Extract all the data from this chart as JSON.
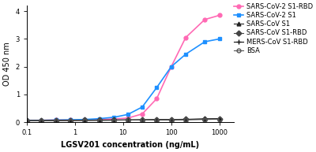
{
  "xlabel": "LGSV201 concentration (ng/mL)",
  "ylabel": "OD 450 nm",
  "xlim": [
    0.1,
    2000
  ],
  "ylim": [
    0,
    4.2
  ],
  "yticks": [
    0,
    1,
    2,
    3,
    4
  ],
  "series": [
    {
      "label": "SARS-CoV-2 S1-RBD",
      "color": "#FF69B4",
      "marker": "o",
      "markersize": 3.5,
      "linewidth": 1.2,
      "x": [
        0.1,
        0.2,
        0.4,
        0.8,
        1.6,
        3.2,
        6.4,
        12.5,
        25,
        50,
        100,
        200,
        500,
        1000
      ],
      "y": [
        0.07,
        0.07,
        0.08,
        0.08,
        0.09,
        0.1,
        0.12,
        0.15,
        0.3,
        0.85,
        2.0,
        3.05,
        3.7,
        3.85
      ]
    },
    {
      "label": "SARS-CoV-2 S1",
      "color": "#1E90FF",
      "marker": "s",
      "markersize": 3.5,
      "linewidth": 1.2,
      "x": [
        0.1,
        0.2,
        0.4,
        0.8,
        1.6,
        3.2,
        6.4,
        12.5,
        25,
        50,
        100,
        200,
        500,
        1000
      ],
      "y": [
        0.07,
        0.07,
        0.08,
        0.09,
        0.1,
        0.13,
        0.18,
        0.28,
        0.55,
        1.25,
        2.0,
        2.45,
        2.9,
        3.0
      ]
    },
    {
      "label": "SARS-CoV S1",
      "color": "#222222",
      "marker": "^",
      "markersize": 3.5,
      "linewidth": 0.8,
      "x": [
        0.1,
        0.2,
        0.4,
        0.8,
        1.6,
        3.2,
        6.4,
        12.5,
        25,
        50,
        100,
        200,
        500,
        1000
      ],
      "y": [
        0.06,
        0.06,
        0.07,
        0.07,
        0.07,
        0.08,
        0.08,
        0.08,
        0.09,
        0.09,
        0.1,
        0.1,
        0.12,
        0.13
      ]
    },
    {
      "label": "SARS-CoV S1-RBD",
      "color": "#444444",
      "marker": "D",
      "markersize": 3.5,
      "linewidth": 0.8,
      "x": [
        0.1,
        0.2,
        0.4,
        0.8,
        1.6,
        3.2,
        6.4,
        12.5,
        25,
        50,
        100,
        200,
        500,
        1000
      ],
      "y": [
        0.06,
        0.06,
        0.07,
        0.07,
        0.08,
        0.08,
        0.08,
        0.09,
        0.09,
        0.1,
        0.1,
        0.11,
        0.12,
        0.13
      ]
    },
    {
      "label": "MERS-CoV S1-RBD",
      "color": "#111111",
      "marker": "+",
      "markersize": 4,
      "linewidth": 0.8,
      "x": [
        0.1,
        0.2,
        0.4,
        0.8,
        1.6,
        3.2,
        6.4,
        12.5,
        25,
        50,
        100,
        200,
        500,
        1000
      ],
      "y": [
        0.06,
        0.06,
        0.06,
        0.07,
        0.07,
        0.07,
        0.08,
        0.08,
        0.08,
        0.09,
        0.09,
        0.1,
        0.11,
        0.12
      ]
    },
    {
      "label": "BSA",
      "color": "#555555",
      "marker": "o",
      "markersize": 3.5,
      "linewidth": 0.8,
      "markerfacecolor": "none",
      "x": [
        0.1,
        0.2,
        0.4,
        0.8,
        1.6,
        3.2,
        6.4,
        12.5,
        25,
        50,
        100,
        200,
        500,
        1000
      ],
      "y": [
        0.06,
        0.06,
        0.06,
        0.07,
        0.07,
        0.07,
        0.07,
        0.08,
        0.08,
        0.08,
        0.09,
        0.09,
        0.1,
        0.11
      ]
    }
  ],
  "legend_fontsize": 6.0,
  "axis_label_fontsize": 7,
  "tick_fontsize": 6,
  "background_color": "#ffffff"
}
